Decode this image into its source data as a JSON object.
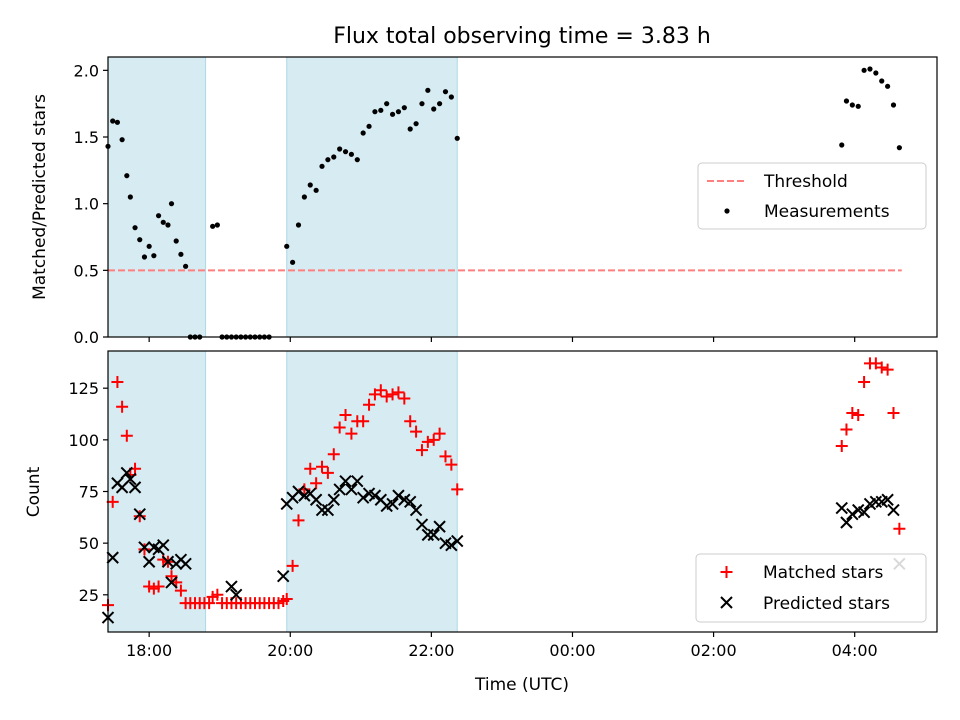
{
  "chart_data": [
    {
      "type": "scatter",
      "title": "Flux total observing time = 3.83 h",
      "xlabel": "",
      "ylabel": "Matched/Predicted stars",
      "xlim": [
        "17:25",
        "05:10"
      ],
      "ylim": [
        0,
        2.1
      ],
      "yticks": [
        "0.0",
        "0.5",
        "1.0",
        "1.5",
        "2.0"
      ],
      "grid": false,
      "legend_position": "center-right",
      "shaded_intervals": [
        [
          "17:25",
          "18:48"
        ],
        [
          "19:57",
          "22:22"
        ]
      ],
      "series": [
        {
          "name": "Threshold",
          "style": "dashed-line",
          "color": "#ff7f7f",
          "points": [
            [
              "17:25",
              0.5
            ],
            [
              "04:40",
              0.5
            ]
          ]
        },
        {
          "name": "Measurements",
          "style": "dot",
          "color": "#000000",
          "points": [
            [
              "17:25",
              1.43
            ],
            [
              "17:29",
              1.62
            ],
            [
              "17:33",
              1.61
            ],
            [
              "17:37",
              1.48
            ],
            [
              "17:41",
              1.21
            ],
            [
              "17:44",
              1.05
            ],
            [
              "17:48",
              0.82
            ],
            [
              "17:52",
              0.73
            ],
            [
              "17:56",
              0.6
            ],
            [
              "18:00",
              0.68
            ],
            [
              "18:04",
              0.61
            ],
            [
              "18:08",
              0.91
            ],
            [
              "18:12",
              0.86
            ],
            [
              "18:16",
              0.84
            ],
            [
              "18:19",
              1.0
            ],
            [
              "18:23",
              0.72
            ],
            [
              "18:27",
              0.62
            ],
            [
              "18:31",
              0.53
            ],
            [
              "18:35",
              0.0
            ],
            [
              "18:39",
              0.0
            ],
            [
              "18:43",
              0.0
            ],
            [
              "18:54",
              0.83
            ],
            [
              "18:58",
              0.84
            ],
            [
              "19:02",
              0.0
            ],
            [
              "19:06",
              0.0
            ],
            [
              "19:10",
              0.0
            ],
            [
              "19:14",
              0.0
            ],
            [
              "19:18",
              0.0
            ],
            [
              "19:22",
              0.0
            ],
            [
              "19:26",
              0.0
            ],
            [
              "19:30",
              0.0
            ],
            [
              "19:34",
              0.0
            ],
            [
              "19:38",
              0.0
            ],
            [
              "19:42",
              0.0
            ],
            [
              "19:57",
              0.68
            ],
            [
              "20:02",
              0.56
            ],
            [
              "20:07",
              0.84
            ],
            [
              "20:12",
              1.05
            ],
            [
              "20:17",
              1.14
            ],
            [
              "20:22",
              1.1
            ],
            [
              "20:27",
              1.28
            ],
            [
              "20:32",
              1.33
            ],
            [
              "20:37",
              1.35
            ],
            [
              "20:42",
              1.41
            ],
            [
              "20:47",
              1.39
            ],
            [
              "20:52",
              1.37
            ],
            [
              "20:57",
              1.33
            ],
            [
              "21:02",
              1.53
            ],
            [
              "21:07",
              1.58
            ],
            [
              "21:12",
              1.69
            ],
            [
              "21:17",
              1.7
            ],
            [
              "21:22",
              1.75
            ],
            [
              "21:27",
              1.67
            ],
            [
              "21:32",
              1.69
            ],
            [
              "21:37",
              1.72
            ],
            [
              "21:42",
              1.56
            ],
            [
              "21:47",
              1.6
            ],
            [
              "21:52",
              1.75
            ],
            [
              "21:57",
              1.85
            ],
            [
              "22:02",
              1.71
            ],
            [
              "22:07",
              1.75
            ],
            [
              "22:12",
              1.84
            ],
            [
              "22:17",
              1.8
            ],
            [
              "22:22",
              1.49
            ],
            [
              "03:49",
              1.44
            ],
            [
              "03:53",
              1.77
            ],
            [
              "03:58",
              1.74
            ],
            [
              "04:03",
              1.73
            ],
            [
              "04:08",
              2.0
            ],
            [
              "04:13",
              2.01
            ],
            [
              "04:18",
              1.98
            ],
            [
              "04:23",
              1.92
            ],
            [
              "04:28",
              1.88
            ],
            [
              "04:33",
              1.74
            ],
            [
              "04:38",
              1.42
            ]
          ]
        }
      ]
    },
    {
      "type": "scatter",
      "title": "",
      "xlabel": "Time (UTC)",
      "ylabel": "Count",
      "xlim": [
        "17:25",
        "05:10"
      ],
      "ylim": [
        7,
        143
      ],
      "xticks": [
        "18:00",
        "20:00",
        "22:00",
        "00:00",
        "02:00",
        "04:00"
      ],
      "yticks": [
        "25",
        "50",
        "75",
        "100",
        "125"
      ],
      "grid": false,
      "legend_position": "bottom-right",
      "shaded_intervals": [
        [
          "17:25",
          "18:48"
        ],
        [
          "19:57",
          "22:22"
        ]
      ],
      "series": [
        {
          "name": "Matched stars",
          "marker": "plus",
          "color": "#ff0000",
          "points": [
            [
              "17:25",
              20
            ],
            [
              "17:29",
              70
            ],
            [
              "17:33",
              128
            ],
            [
              "17:37",
              116
            ],
            [
              "17:41",
              102
            ],
            [
              "17:44",
              83
            ],
            [
              "17:48",
              86
            ],
            [
              "17:52",
              63
            ],
            [
              "17:56",
              47
            ],
            [
              "18:00",
              29
            ],
            [
              "18:04",
              28
            ],
            [
              "18:08",
              29
            ],
            [
              "18:12",
              42
            ],
            [
              "18:16",
              41
            ],
            [
              "18:19",
              34
            ],
            [
              "18:23",
              31
            ],
            [
              "18:27",
              27
            ],
            [
              "18:31",
              21
            ],
            [
              "18:35",
              21
            ],
            [
              "18:39",
              21
            ],
            [
              "18:43",
              21
            ],
            [
              "18:47",
              21
            ],
            [
              "18:51",
              21
            ],
            [
              "18:54",
              24
            ],
            [
              "18:58",
              25
            ],
            [
              "19:02",
              21
            ],
            [
              "19:06",
              21
            ],
            [
              "19:10",
              21
            ],
            [
              "19:14",
              21
            ],
            [
              "19:18",
              21
            ],
            [
              "19:22",
              21
            ],
            [
              "19:26",
              21
            ],
            [
              "19:30",
              21
            ],
            [
              "19:34",
              21
            ],
            [
              "19:38",
              21
            ],
            [
              "19:42",
              21
            ],
            [
              "19:46",
              21
            ],
            [
              "19:50",
              21
            ],
            [
              "19:54",
              22
            ],
            [
              "19:57",
              23
            ],
            [
              "20:02",
              39
            ],
            [
              "20:07",
              61
            ],
            [
              "20:12",
              76
            ],
            [
              "20:17",
              86
            ],
            [
              "20:22",
              79
            ],
            [
              "20:27",
              87
            ],
            [
              "20:32",
              84
            ],
            [
              "20:37",
              93
            ],
            [
              "20:42",
              106
            ],
            [
              "20:47",
              112
            ],
            [
              "20:52",
              103
            ],
            [
              "20:57",
              109
            ],
            [
              "21:02",
              109
            ],
            [
              "21:07",
              117
            ],
            [
              "21:12",
              122
            ],
            [
              "21:17",
              124
            ],
            [
              "21:22",
              121
            ],
            [
              "21:27",
              122
            ],
            [
              "21:32",
              123
            ],
            [
              "21:37",
              120
            ],
            [
              "21:42",
              109
            ],
            [
              "21:47",
              104
            ],
            [
              "21:52",
              95
            ],
            [
              "21:57",
              99
            ],
            [
              "22:02",
              100
            ],
            [
              "22:07",
              103
            ],
            [
              "22:12",
              92
            ],
            [
              "22:17",
              88
            ],
            [
              "22:22",
              76
            ],
            [
              "03:49",
              97
            ],
            [
              "03:53",
              105
            ],
            [
              "03:58",
              113
            ],
            [
              "04:03",
              112
            ],
            [
              "04:08",
              128
            ],
            [
              "04:13",
              137
            ],
            [
              "04:18",
              137
            ],
            [
              "04:23",
              135
            ],
            [
              "04:28",
              134
            ],
            [
              "04:33",
              113
            ],
            [
              "04:38",
              57
            ]
          ]
        },
        {
          "name": "Predicted stars",
          "marker": "x",
          "color": "#000000",
          "points": [
            [
              "17:25",
              14
            ],
            [
              "17:29",
              43
            ],
            [
              "17:33",
              79
            ],
            [
              "17:37",
              77
            ],
            [
              "17:41",
              84
            ],
            [
              "17:44",
              81
            ],
            [
              "17:48",
              77
            ],
            [
              "17:52",
              64
            ],
            [
              "17:56",
              48
            ],
            [
              "18:00",
              41
            ],
            [
              "18:04",
              48
            ],
            [
              "18:08",
              47
            ],
            [
              "18:12",
              49
            ],
            [
              "18:16",
              41
            ],
            [
              "18:19",
              31
            ],
            [
              "18:23",
              40
            ],
            [
              "18:27",
              42
            ],
            [
              "18:31",
              40
            ],
            [
              "19:10",
              29
            ],
            [
              "19:14",
              25
            ],
            [
              "19:54",
              34
            ],
            [
              "19:57",
              69
            ],
            [
              "20:02",
              72
            ],
            [
              "20:07",
              75
            ],
            [
              "20:12",
              73
            ],
            [
              "20:17",
              74
            ],
            [
              "20:22",
              71
            ],
            [
              "20:27",
              66
            ],
            [
              "20:32",
              66
            ],
            [
              "20:37",
              71
            ],
            [
              "20:42",
              76
            ],
            [
              "20:47",
              80
            ],
            [
              "20:52",
              76
            ],
            [
              "20:57",
              80
            ],
            [
              "21:02",
              72
            ],
            [
              "21:07",
              74
            ],
            [
              "21:12",
              73
            ],
            [
              "21:17",
              71
            ],
            [
              "21:22",
              68
            ],
            [
              "21:27",
              69
            ],
            [
              "21:32",
              73
            ],
            [
              "21:37",
              71
            ],
            [
              "21:42",
              70
            ],
            [
              "21:47",
              66
            ],
            [
              "21:52",
              59
            ],
            [
              "21:57",
              54
            ],
            [
              "22:02",
              54
            ],
            [
              "22:07",
              58
            ],
            [
              "22:12",
              50
            ],
            [
              "22:17",
              49
            ],
            [
              "22:22",
              51
            ],
            [
              "03:49",
              67
            ],
            [
              "03:53",
              60
            ],
            [
              "03:58",
              64
            ],
            [
              "04:03",
              66
            ],
            [
              "04:08",
              65
            ],
            [
              "04:13",
              69
            ],
            [
              "04:18",
              70
            ],
            [
              "04:23",
              70
            ],
            [
              "04:28",
              71
            ],
            [
              "04:33",
              66
            ],
            [
              "04:38",
              40
            ]
          ]
        }
      ]
    }
  ],
  "colors": {
    "shade": "#add8e6",
    "threshold": "#ff7f7f",
    "matched": "#ff0000",
    "predicted": "#000000",
    "measurement": "#000000"
  }
}
